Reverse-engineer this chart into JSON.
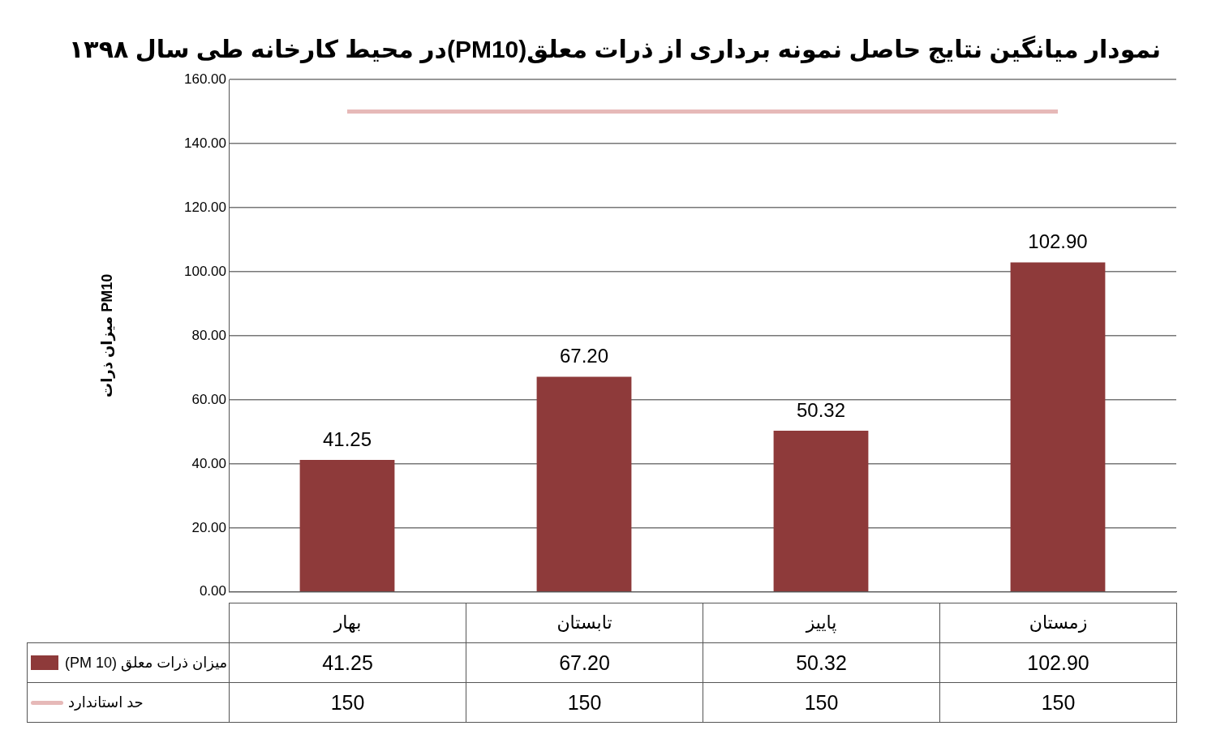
{
  "chart_data": {
    "type": "bar",
    "title": "نمودار میانگین نتایج حاصل نمونه برداری از ذرات معلق(PM10)در محیط کارخانه طی سال ۱۳۹۸",
    "ylabel": "میزان ذرات PM10",
    "categories": [
      "بهار",
      "تابستان",
      "پاییز",
      "زمستان"
    ],
    "series": [
      {
        "name": "میزان ذرات معلق (PM 10)",
        "color": "#8e3a3a",
        "values": [
          41.25,
          67.2,
          50.32,
          102.9
        ],
        "value_labels": [
          "41.25",
          "67.20",
          "50.32",
          "102.90"
        ]
      },
      {
        "name": "حد استاندارد",
        "type": "line",
        "color": "#e6b9b8",
        "values": [
          150,
          150,
          150,
          150
        ],
        "value_labels": [
          "150",
          "150",
          "150",
          "150"
        ]
      }
    ],
    "ylim": [
      0,
      160
    ],
    "yticks": [
      {
        "value": 0,
        "label": "0.00"
      },
      {
        "value": 20,
        "label": "20.00"
      },
      {
        "value": 40,
        "label": "40.00"
      },
      {
        "value": 60,
        "label": "60.00"
      },
      {
        "value": 80,
        "label": "80.00"
      },
      {
        "value": 100,
        "label": "100.00"
      },
      {
        "value": 120,
        "label": "120.00"
      },
      {
        "value": 140,
        "label": "140.00"
      },
      {
        "value": 160,
        "label": "160.00"
      }
    ],
    "grid": "y",
    "legend": "bottom",
    "marker": "none"
  }
}
